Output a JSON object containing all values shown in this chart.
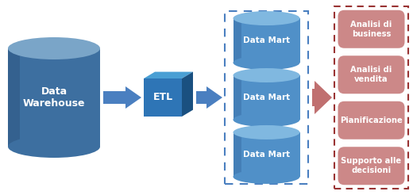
{
  "bg_color": "#ffffff",
  "dw_body_color": "#3d6fa0",
  "dw_top_color": "#7aa5c8",
  "dw_shade_color": "#2d5580",
  "etl_face_color": "#2e75b6",
  "etl_top_color": "#4a9fd4",
  "etl_side_color": "#1a5080",
  "dm_body_color": "#5090c8",
  "dm_top_color": "#80b8e0",
  "dm_shade_color": "#3a70a8",
  "arrow_blue": "#4a7fc0",
  "arrow_red": "#c07070",
  "box_fill": "#cc8888",
  "box_border": "#b06060",
  "dash_blue": "#4a7fc0",
  "dash_red": "#993333",
  "text_white": "#ffffff",
  "label_dw": "Data\nWarehouse",
  "label_etl": "ETL",
  "labels_dm": [
    "Data Mart",
    "Data Mart",
    "Data Mart"
  ],
  "labels_boxes": [
    "Analisi di\nbusiness",
    "Analisi di\nvendita",
    "Pianificazione",
    "Supporto alle\ndecisioni"
  ],
  "figsize": [
    5.2,
    2.46
  ],
  "dpi": 100
}
